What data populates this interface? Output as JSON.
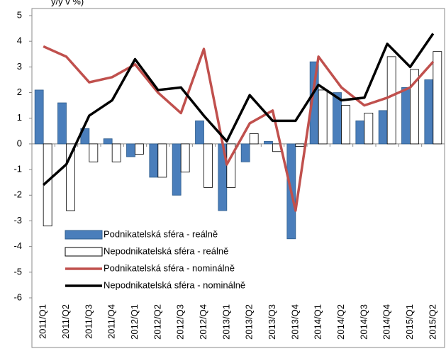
{
  "chart_data": {
    "type": "bar_line",
    "title": "y/y v %)",
    "categories": [
      "2011/Q1",
      "2011/Q2",
      "2011/Q3",
      "2011/Q4",
      "2012/Q1",
      "2012/Q2",
      "2012/Q3",
      "2012/Q4",
      "2013/Q1",
      "2013/Q2",
      "2013/Q3",
      "2013/Q4",
      "2014/Q1",
      "2014/Q2",
      "2014/Q3",
      "2014/Q4",
      "2015/Q1",
      "2015/Q2"
    ],
    "series": [
      {
        "name": "Podnikatelská sféra - reálně",
        "kind": "bar",
        "color": "#4a7ebb",
        "values": [
          2.1,
          1.6,
          0.6,
          0.2,
          -0.5,
          -1.3,
          -2.0,
          0.9,
          -2.6,
          -0.7,
          0.1,
          -3.7,
          3.2,
          2.0,
          0.9,
          1.3,
          2.2,
          2.5
        ]
      },
      {
        "name": "Nepodnikatelská sféra - reálně",
        "kind": "bar",
        "color": "#ffffff",
        "values": [
          -3.2,
          -2.6,
          -0.7,
          -0.7,
          -0.4,
          -1.3,
          -1.1,
          -1.7,
          -1.7,
          0.4,
          -0.3,
          -0.1,
          2.1,
          1.5,
          1.2,
          3.4,
          2.9,
          3.6
        ]
      },
      {
        "name": "Podnikatelská sféra - nominálně",
        "kind": "line",
        "color": "#c0504d",
        "values": [
          3.8,
          3.4,
          2.4,
          2.6,
          3.1,
          2.0,
          1.2,
          3.7,
          -0.8,
          0.8,
          1.3,
          -2.6,
          3.4,
          2.2,
          1.5,
          1.8,
          2.2,
          3.2
        ]
      },
      {
        "name": "Nepodnikatelská sféra - nominálně",
        "kind": "line",
        "color": "#000000",
        "values": [
          -1.6,
          -0.8,
          1.1,
          1.7,
          3.3,
          2.1,
          2.2,
          1.1,
          0.1,
          1.9,
          0.9,
          0.9,
          2.3,
          1.7,
          1.8,
          3.9,
          3.0,
          4.3
        ]
      }
    ],
    "ylim": [
      -6,
      5
    ],
    "yticks": [
      -6,
      -5,
      -4,
      -3,
      -2,
      -1,
      0,
      1,
      2,
      3,
      4,
      5
    ]
  }
}
